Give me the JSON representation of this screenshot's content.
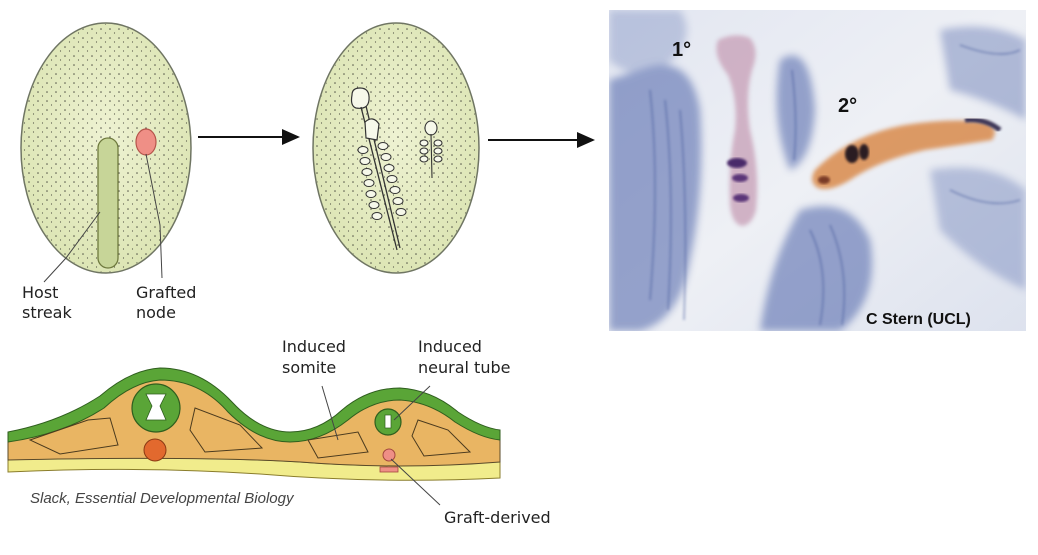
{
  "labels": {
    "host_streak": [
      "Host",
      "streak"
    ],
    "grafted_node": [
      "Grafted",
      "node"
    ],
    "induced_somite": [
      "Induced",
      "somite"
    ],
    "induced_neural_tube": [
      "Induced",
      "neural tube"
    ],
    "graft_derived": "Graft-derived"
  },
  "photo": {
    "primary_axis": "1°",
    "secondary_axis": "2°",
    "credit": "C Stern (UCL)"
  },
  "citation": "Slack, Essential Developmental Biology",
  "colors": {
    "embryo_fill": "#e4ebc2",
    "embryo_stroke": "#6f7563",
    "streak": "#c7d598",
    "node": "#ef8f86",
    "ectoderm": "#5aa537",
    "mesoderm": "#e9b563",
    "endoderm": "#f1ec8c",
    "photo_bg": "#e9ecf4",
    "stain_blue": "#4b62a8",
    "stain_orange": "#d98a4c",
    "stain_purple": "#4a2a6a"
  }
}
